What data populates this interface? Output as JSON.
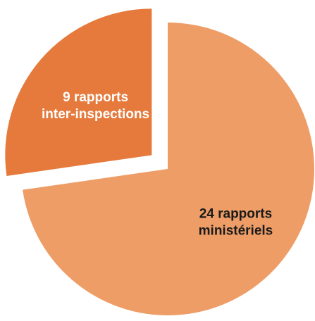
{
  "chart_data": {
    "type": "pie",
    "categories": [
      "9 rapports inter-inspections",
      "24 rapports ministériels"
    ],
    "values": [
      9,
      24
    ],
    "slices": [
      {
        "label_lines": [
          "9 rapports",
          "inter-inspections"
        ],
        "value": 9,
        "color": "#E57A3C",
        "label_color": "#ffffff",
        "exploded": true
      },
      {
        "label_lines": [
          "24 rapports",
          "ministériels"
        ],
        "value": 24,
        "color": "#EE9D67",
        "label_color": "#1a1a1a",
        "exploded": false
      }
    ],
    "start_angle_deg": -90,
    "direction": "counterclockwise"
  },
  "colors": {
    "background": "#ffffff",
    "slice_major": "#EE9D67",
    "slice_minor": "#E57A3C"
  }
}
